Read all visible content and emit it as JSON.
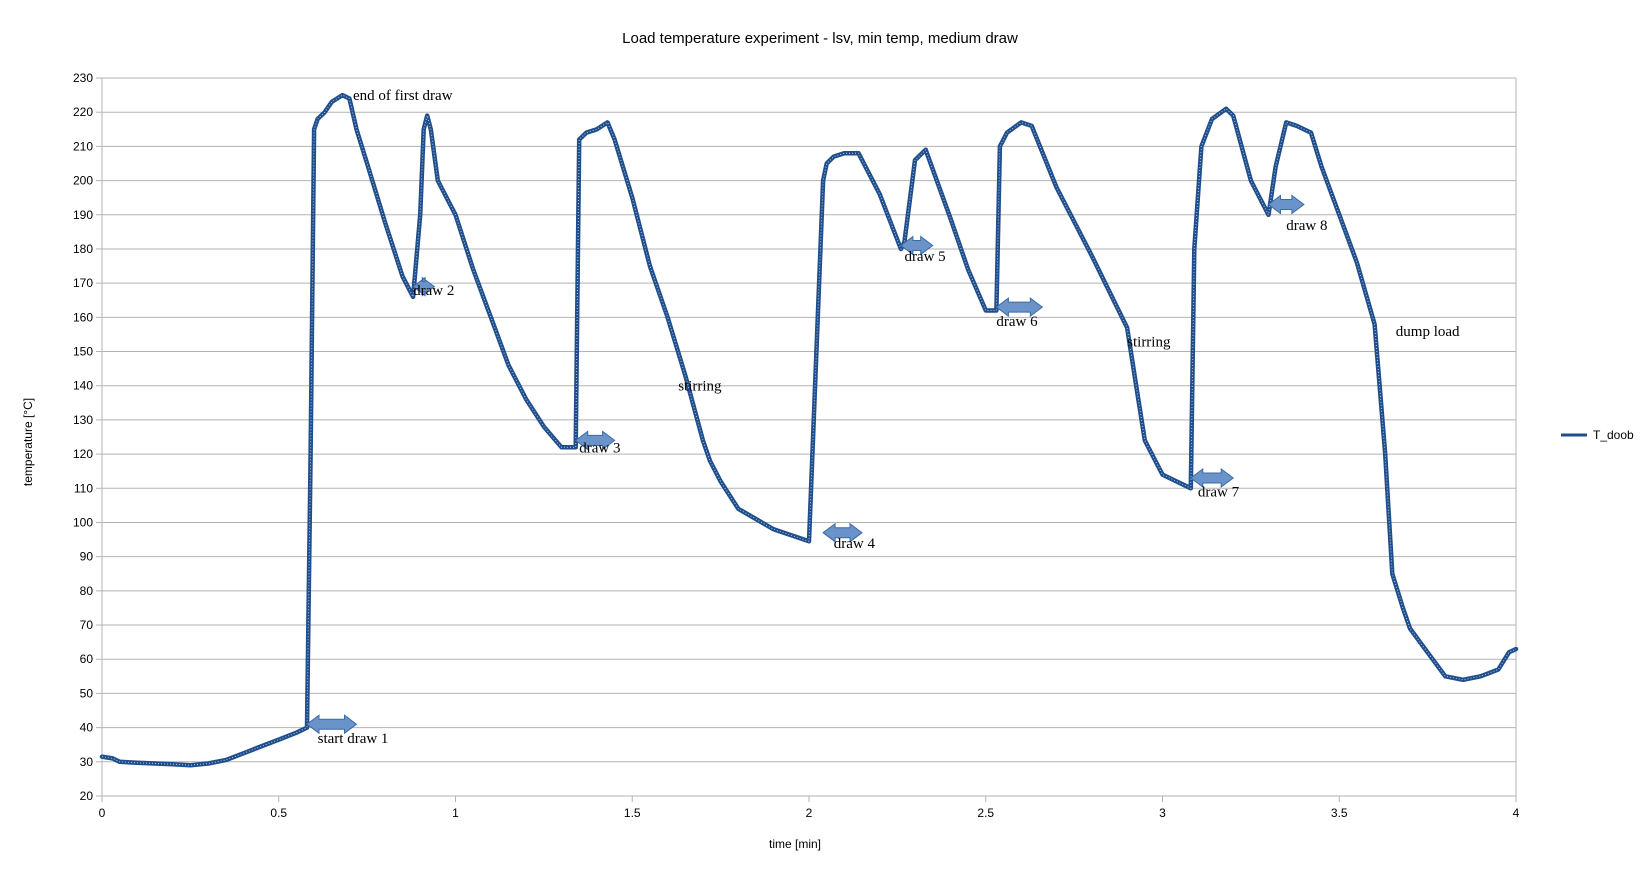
{
  "chart_data": {
    "type": "line",
    "title": "Load temperature experiment - lsv, min temp, medium draw",
    "xlabel": "time [min]",
    "ylabel": "temperature [°C]",
    "xlim": [
      0,
      4
    ],
    "ylim": [
      20,
      230
    ],
    "x_ticks": [
      0,
      0.5,
      1,
      1.5,
      2,
      2.5,
      3,
      3.5,
      4
    ],
    "x_tick_labels": [
      "0",
      "0.5",
      "1",
      "1.5",
      "2",
      "2.5",
      "3",
      "3.5",
      "4"
    ],
    "y_ticks": [
      20,
      30,
      40,
      50,
      60,
      70,
      80,
      90,
      100,
      110,
      120,
      130,
      140,
      150,
      160,
      170,
      180,
      190,
      200,
      210,
      220,
      230
    ],
    "y_tick_labels": [
      "20",
      "30",
      "40",
      "50",
      "60",
      "70",
      "80",
      "90",
      "100",
      "110",
      "120",
      "130",
      "140",
      "150",
      "160",
      "170",
      "180",
      "190",
      "200",
      "210",
      "220",
      "230"
    ],
    "grid": "horizontal",
    "legend_position": "right",
    "series": [
      {
        "name": "T_doob",
        "color": "#1f4e8c",
        "x": [
          0.0,
          0.03,
          0.05,
          0.1,
          0.15,
          0.2,
          0.25,
          0.3,
          0.35,
          0.4,
          0.45,
          0.5,
          0.55,
          0.58,
          0.59,
          0.6,
          0.61,
          0.63,
          0.65,
          0.68,
          0.7,
          0.72,
          0.75,
          0.8,
          0.85,
          0.88,
          0.9,
          0.91,
          0.92,
          0.93,
          0.95,
          1.0,
          1.05,
          1.1,
          1.15,
          1.2,
          1.25,
          1.3,
          1.34,
          1.35,
          1.37,
          1.4,
          1.43,
          1.45,
          1.5,
          1.55,
          1.6,
          1.65,
          1.7,
          1.72,
          1.75,
          1.8,
          1.9,
          2.0,
          2.04,
          2.05,
          2.07,
          2.1,
          2.14,
          2.2,
          2.26,
          2.27,
          2.3,
          2.33,
          2.4,
          2.45,
          2.5,
          2.53,
          2.54,
          2.56,
          2.6,
          2.63,
          2.7,
          2.8,
          2.9,
          2.93,
          2.95,
          3.0,
          3.08,
          3.09,
          3.11,
          3.14,
          3.18,
          3.2,
          3.25,
          3.3,
          3.32,
          3.35,
          3.38,
          3.42,
          3.45,
          3.5,
          3.55,
          3.6,
          3.63,
          3.65,
          3.68,
          3.7,
          3.75,
          3.8,
          3.85,
          3.9,
          3.95,
          3.98,
          4.0
        ],
        "values": [
          31.5,
          31,
          30,
          29.7,
          29.5,
          29.3,
          29,
          29.5,
          30.5,
          32.5,
          34.5,
          36.5,
          38.5,
          40,
          120,
          215,
          218,
          220,
          223,
          225,
          224,
          215,
          205,
          188,
          172,
          166,
          190,
          215,
          219,
          215,
          200,
          190,
          174,
          160,
          146,
          136,
          128,
          122,
          122,
          212,
          214,
          215,
          217,
          212,
          195,
          175,
          160,
          143,
          124,
          118,
          112,
          104,
          98,
          94.5,
          200,
          205,
          207,
          208,
          208,
          196,
          180,
          182,
          206,
          209,
          189,
          174,
          162,
          162,
          210,
          214,
          217,
          216,
          198,
          178,
          157,
          137,
          124,
          114,
          110,
          180,
          210,
          218,
          221,
          219,
          200,
          190,
          204,
          217,
          216,
          214,
          204,
          190,
          176,
          158,
          120,
          85,
          75,
          69,
          62,
          55,
          54,
          55,
          57,
          62,
          63
        ]
      }
    ],
    "annotations": [
      {
        "text": "end of first draw",
        "x": 0.71,
        "y": 225
      },
      {
        "text": "draw 2",
        "x": 0.88,
        "y": 168
      },
      {
        "text": "draw 3",
        "x": 1.35,
        "y": 122
      },
      {
        "text": "stirring",
        "x": 1.63,
        "y": 140
      },
      {
        "text": "draw 4",
        "x": 2.07,
        "y": 94
      },
      {
        "text": "draw 5",
        "x": 2.27,
        "y": 178
      },
      {
        "text": "draw 6",
        "x": 2.53,
        "y": 159
      },
      {
        "text": "stirring",
        "x": 2.9,
        "y": 153
      },
      {
        "text": "draw 7",
        "x": 3.1,
        "y": 109
      },
      {
        "text": "draw 8",
        "x": 3.35,
        "y": 187
      },
      {
        "text": "dump load",
        "x": 3.66,
        "y": 156
      },
      {
        "text": "start draw 1",
        "x": 0.61,
        "y": 37
      }
    ],
    "arrows": [
      {
        "x_start": 0.58,
        "x_end": 0.72,
        "y": 41
      },
      {
        "x_start": 0.88,
        "x_end": 0.94,
        "y": 169
      },
      {
        "x_start": 1.34,
        "x_end": 1.45,
        "y": 124
      },
      {
        "x_start": 2.04,
        "x_end": 2.15,
        "y": 97
      },
      {
        "x_start": 2.26,
        "x_end": 2.35,
        "y": 181
      },
      {
        "x_start": 2.53,
        "x_end": 2.66,
        "y": 163
      },
      {
        "x_start": 3.08,
        "x_end": 3.2,
        "y": 113
      },
      {
        "x_start": 3.3,
        "x_end": 3.4,
        "y": 193
      }
    ]
  }
}
